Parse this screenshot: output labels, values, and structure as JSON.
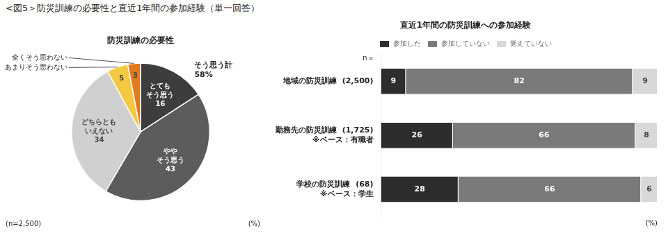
{
  "title": "<図5＞防災訓練の必要性と直近1年間の参加経験（単一回答）",
  "chart_data": [
    {
      "type": "pie",
      "title": "防災訓練の必要性",
      "categories": [
        "とても\nそう思う",
        "やや\nそう思う",
        "どちらとも\nいえない",
        "あまりそう思わない",
        "全くそう思わない"
      ],
      "values": [
        16,
        43,
        34,
        5,
        3
      ],
      "colors": [
        "#3d3d3d",
        "#5c5c5c",
        "#d0d0d0",
        "#f5c842",
        "#e07b20"
      ],
      "data_labels": true,
      "annotations": [
        "そう思う計\n58%",
        "(n=2,500)",
        "(%)"
      ]
    },
    {
      "type": "bar",
      "title": "直近1年間の防災訓練への参加経験",
      "orientation": "horizontal",
      "stacked": true,
      "categories": [
        "地域の防災訓練  (2,500)",
        "勤務先の防災訓練  (1,725)\n※ベース：有職者",
        "学校の防災訓練  (68)\n※ベース：学生"
      ],
      "series": [
        {
          "name": "参加した",
          "color": "#2d2d2d",
          "values": [
            9,
            26,
            28
          ]
        },
        {
          "name": "参加していない",
          "color": "#7a7a7a",
          "values": [
            82,
            66,
            66
          ]
        },
        {
          "name": "覚えていない",
          "color": "#d8d8d8",
          "values": [
            9,
            8,
            6
          ]
        }
      ],
      "xlim": [
        0,
        100
      ],
      "grid": false,
      "tick_labels": "y",
      "data_labels": true,
      "legend": "top",
      "annotations": [
        "n＝",
        "(%)"
      ]
    }
  ]
}
